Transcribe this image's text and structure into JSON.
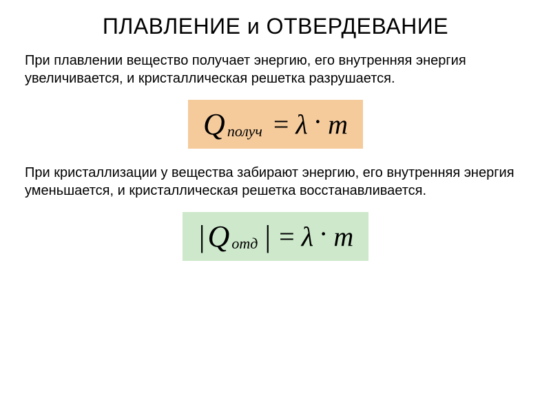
{
  "title": "ПЛАВЛЕНИЕ и ОТВЕРДЕВАНИЕ",
  "para1": "При плавлении вещество получает энергию, его внутренняя энергия увеличивается, и кристаллическая решетка разрушается.",
  "para2": "При кристаллизации у вещества забирают энергию, его внутренняя энергия уменьшается, и кристаллическая решетка восстанавливается.",
  "formula1": {
    "Q": "Q",
    "subscript": "получ",
    "eq": "=",
    "lambda": "λ",
    "dot": "·",
    "m": "m",
    "bg": "#f5cb9c",
    "hasAbs": false
  },
  "formula2": {
    "Q": "Q",
    "subscript": "отд",
    "eq": "=",
    "lambda": "λ",
    "dot": "·",
    "m": "m",
    "bg": "#cde8ca",
    "hasAbs": true
  },
  "colors": {
    "text": "#000000",
    "bg": "#ffffff"
  },
  "fontsize": {
    "title": 32,
    "body": 20,
    "formula": 40
  }
}
